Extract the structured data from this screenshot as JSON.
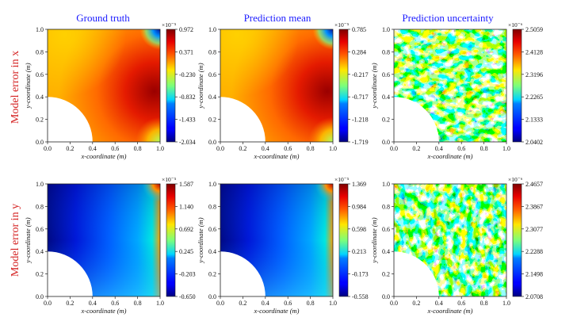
{
  "column_titles": [
    "Ground truth",
    "Prediction mean",
    "Prediction uncertainty"
  ],
  "row_titles": [
    "Model error in x",
    "Model error in y"
  ],
  "x_label": "x-coordinate (m)",
  "y_label": "y-coordinate (m)",
  "axis_ticks": [
    "0.0",
    "0.2",
    "0.4",
    "0.6",
    "0.8",
    "1.0"
  ],
  "chart_data": [
    {
      "type": "heatmap",
      "title": "Ground truth",
      "row": "Model error in x",
      "xlabel": "x-coordinate (m)",
      "ylabel": "y-coordinate (m)",
      "xlim": [
        0,
        1
      ],
      "ylim": [
        0,
        1
      ],
      "hole": {
        "shape": "quarter-circle",
        "center": [
          0,
          0
        ],
        "radius": 0.4
      },
      "colorbar": {
        "scale_label": "×10⁻⁵",
        "ticks": [
          "0.972",
          "0.371",
          "-0.230",
          "-0.832",
          "-1.433",
          "-2.034"
        ],
        "min": -2.034,
        "max": 0.972
      }
    },
    {
      "type": "heatmap",
      "title": "Prediction mean",
      "row": "Model error in x",
      "xlabel": "x-coordinate (m)",
      "ylabel": "y-coordinate (m)",
      "xlim": [
        0,
        1
      ],
      "ylim": [
        0,
        1
      ],
      "hole": {
        "shape": "quarter-circle",
        "center": [
          0,
          0
        ],
        "radius": 0.4
      },
      "colorbar": {
        "scale_label": "×10⁻⁵",
        "ticks": [
          "0.785",
          "0.284",
          "-0.217",
          "-0.717",
          "-1.218",
          "-1.719"
        ],
        "min": -1.719,
        "max": 0.785
      }
    },
    {
      "type": "heatmap",
      "title": "Prediction uncertainty",
      "row": "Model error in x",
      "xlabel": "x-coordinate (m)",
      "ylabel": "y-coordinate (m)",
      "xlim": [
        0,
        1
      ],
      "ylim": [
        0,
        1
      ],
      "hole": {
        "shape": "quarter-circle",
        "center": [
          0,
          0
        ],
        "radius": 0.4
      },
      "colorbar": {
        "scale_label": "×10⁻⁶",
        "ticks": [
          "2.5059",
          "2.4128",
          "2.3196",
          "2.2265",
          "2.1333",
          "2.0402"
        ],
        "min": 2.0402,
        "max": 2.5059
      }
    },
    {
      "type": "heatmap",
      "title": "Ground truth",
      "row": "Model error in y",
      "xlabel": "x-coordinate (m)",
      "ylabel": "y-coordinate (m)",
      "xlim": [
        0,
        1
      ],
      "ylim": [
        0,
        1
      ],
      "hole": {
        "shape": "quarter-circle",
        "center": [
          0,
          0
        ],
        "radius": 0.4
      },
      "colorbar": {
        "scale_label": "×10⁻⁵",
        "ticks": [
          "1.587",
          "1.140",
          "0.692",
          "0.245",
          "-0.203",
          "-0.650"
        ],
        "min": -0.65,
        "max": 1.587
      }
    },
    {
      "type": "heatmap",
      "title": "Prediction mean",
      "row": "Model error in y",
      "xlabel": "x-coordinate (m)",
      "ylabel": "y-coordinate (m)",
      "xlim": [
        0,
        1
      ],
      "ylim": [
        0,
        1
      ],
      "hole": {
        "shape": "quarter-circle",
        "center": [
          0,
          0
        ],
        "radius": 0.4
      },
      "colorbar": {
        "scale_label": "×10⁻⁵",
        "ticks": [
          "1.369",
          "0.984",
          "0.598",
          "0.213",
          "-0.173",
          "-0.558"
        ],
        "min": -0.558,
        "max": 1.369
      }
    },
    {
      "type": "heatmap",
      "title": "Prediction uncertainty",
      "row": "Model error in y",
      "xlabel": "x-coordinate (m)",
      "ylabel": "y-coordinate (m)",
      "xlim": [
        0,
        1
      ],
      "ylim": [
        0,
        1
      ],
      "hole": {
        "shape": "quarter-circle",
        "center": [
          0,
          0
        ],
        "radius": 0.4
      },
      "colorbar": {
        "scale_label": "×10⁻⁶",
        "ticks": [
          "2.4657",
          "2.3867",
          "2.3077",
          "2.2288",
          "2.1498",
          "2.0708"
        ],
        "min": 2.0708,
        "max": 2.4657
      }
    }
  ]
}
